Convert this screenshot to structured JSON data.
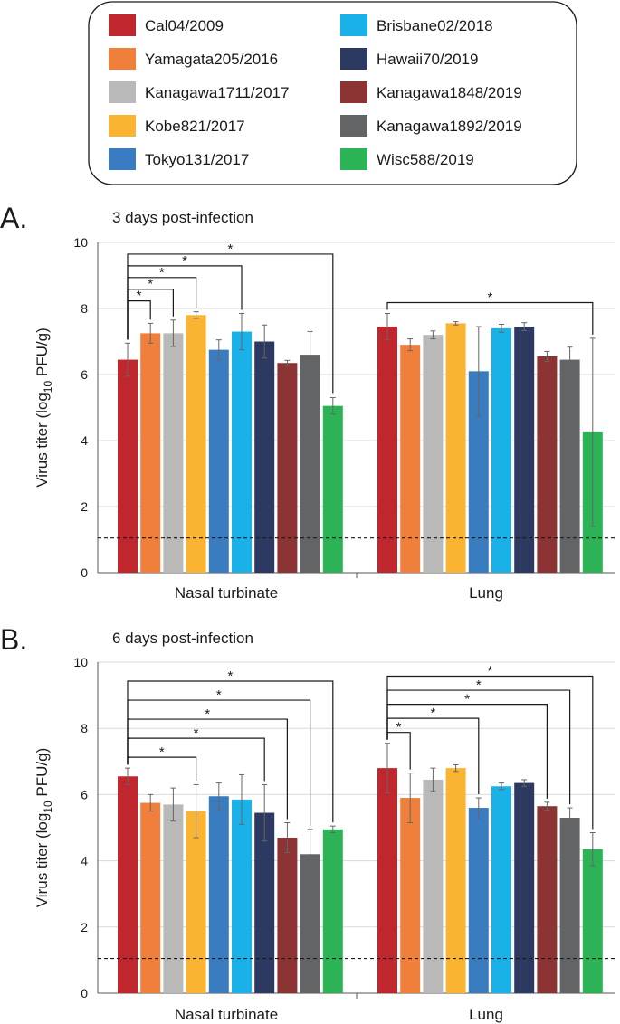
{
  "legend": {
    "items": [
      {
        "label": "Cal04/2009",
        "color": "#c0262d"
      },
      {
        "label": "Yamagata205/2016",
        "color": "#f07f3c"
      },
      {
        "label": "Kanagawa1711/2017",
        "color": "#b9b9b9"
      },
      {
        "label": "Kobe821/2017",
        "color": "#fbb432"
      },
      {
        "label": "Tokyo131/2017",
        "color": "#3a7cc0"
      },
      {
        "label": "Brisbane02/2018",
        "color": "#1ab0e8"
      },
      {
        "label": "Hawaii70/2019",
        "color": "#2c3a62"
      },
      {
        "label": "Kanagawa1848/2019",
        "color": "#8b3433"
      },
      {
        "label": "Kanagawa1892/2019",
        "color": "#636466"
      },
      {
        "label": "Wisc588/2019",
        "color": "#2bb355"
      }
    ]
  },
  "chart_data": [
    {
      "panel": "A.",
      "type": "bar",
      "title": "3 days post-infection",
      "ylabel": "Virus titer (log10 PFU/g)",
      "ylabel_main": "Virus titer (log",
      "ylabel_sub": "10",
      "ylabel_tail": " PFU/g)",
      "ylim": [
        0,
        10
      ],
      "yticks": [
        "0",
        "2",
        "4",
        "6",
        "8",
        "10"
      ],
      "detection_limit": 1.05,
      "groups": [
        "Nasal turbinate",
        "Lung"
      ],
      "series": [
        {
          "name": "Cal04/2009",
          "values": [
            6.45,
            7.45
          ],
          "errors": [
            0.5,
            0.4
          ]
        },
        {
          "name": "Yamagata205/2016",
          "values": [
            7.25,
            6.9
          ],
          "errors": [
            0.3,
            0.18
          ]
        },
        {
          "name": "Kanagawa1711/2017",
          "values": [
            7.25,
            7.2
          ],
          "errors": [
            0.4,
            0.12
          ]
        },
        {
          "name": "Kobe821/2017",
          "values": [
            7.8,
            7.55
          ],
          "errors": [
            0.1,
            0.05
          ]
        },
        {
          "name": "Tokyo131/2017",
          "values": [
            6.75,
            6.1
          ],
          "errors": [
            0.3,
            1.35
          ]
        },
        {
          "name": "Brisbane02/2018",
          "values": [
            7.3,
            7.4
          ],
          "errors": [
            0.55,
            0.12
          ]
        },
        {
          "name": "Hawaii70/2019",
          "values": [
            7.0,
            7.45
          ],
          "errors": [
            0.5,
            0.12
          ]
        },
        {
          "name": "Kanagawa1848/2019",
          "values": [
            6.35,
            6.55
          ],
          "errors": [
            0.08,
            0.15
          ]
        },
        {
          "name": "Kanagawa1892/2019",
          "values": [
            6.6,
            6.45
          ],
          "errors": [
            0.7,
            0.38
          ]
        },
        {
          "name": "Wisc588/2019",
          "values": [
            5.05,
            4.25
          ],
          "errors": [
            0.25,
            2.85
          ]
        }
      ],
      "significance": [
        {
          "group": 0,
          "from": 0,
          "to": 1,
          "label": "*"
        },
        {
          "group": 0,
          "from": 0,
          "to": 2,
          "label": "*"
        },
        {
          "group": 0,
          "from": 0,
          "to": 3,
          "label": "*"
        },
        {
          "group": 0,
          "from": 0,
          "to": 5,
          "label": "*"
        },
        {
          "group": 0,
          "from": 0,
          "to": 9,
          "label": "*"
        },
        {
          "group": 1,
          "from": 0,
          "to": 9,
          "label": "*"
        }
      ]
    },
    {
      "panel": "B.",
      "type": "bar",
      "title": "6 days post-infection",
      "ylabel": "Virus titer (log10 PFU/g)",
      "ylabel_main": "Virus titer (log",
      "ylabel_sub": "10",
      "ylabel_tail": " PFU/g)",
      "ylim": [
        0,
        10
      ],
      "yticks": [
        "0",
        "2",
        "4",
        "6",
        "8",
        "10"
      ],
      "detection_limit": 1.05,
      "groups": [
        "Nasal turbinate",
        "Lung"
      ],
      "series": [
        {
          "name": "Cal04/2009",
          "values": [
            6.55,
            6.8
          ],
          "errors": [
            0.25,
            0.75
          ]
        },
        {
          "name": "Yamagata205/2016",
          "values": [
            5.75,
            5.9
          ],
          "errors": [
            0.25,
            0.75
          ]
        },
        {
          "name": "Kanagawa1711/2017",
          "values": [
            5.7,
            6.45
          ],
          "errors": [
            0.5,
            0.35
          ]
        },
        {
          "name": "Kobe821/2017",
          "values": [
            5.5,
            6.8
          ],
          "errors": [
            0.8,
            0.1
          ]
        },
        {
          "name": "Tokyo131/2017",
          "values": [
            5.95,
            5.6
          ],
          "errors": [
            0.4,
            0.3
          ]
        },
        {
          "name": "Brisbane02/2018",
          "values": [
            5.85,
            6.25
          ],
          "errors": [
            0.75,
            0.1
          ]
        },
        {
          "name": "Hawaii70/2019",
          "values": [
            5.45,
            6.35
          ],
          "errors": [
            0.85,
            0.1
          ]
        },
        {
          "name": "Kanagawa1848/2019",
          "values": [
            4.7,
            5.65
          ],
          "errors": [
            0.45,
            0.12
          ]
        },
        {
          "name": "Kanagawa1892/2019",
          "values": [
            4.2,
            5.3
          ],
          "errors": [
            0.75,
            0.3
          ]
        },
        {
          "name": "Wisc588/2019",
          "values": [
            4.95,
            4.35
          ],
          "errors": [
            0.1,
            0.5
          ]
        }
      ],
      "significance": [
        {
          "group": 0,
          "from": 0,
          "to": 3,
          "label": "*"
        },
        {
          "group": 0,
          "from": 0,
          "to": 6,
          "label": "*"
        },
        {
          "group": 0,
          "from": 0,
          "to": 7,
          "label": "*"
        },
        {
          "group": 0,
          "from": 0,
          "to": 8,
          "label": "*"
        },
        {
          "group": 0,
          "from": 0,
          "to": 9,
          "label": "*"
        },
        {
          "group": 1,
          "from": 0,
          "to": 1,
          "label": "*"
        },
        {
          "group": 1,
          "from": 0,
          "to": 4,
          "label": "*"
        },
        {
          "group": 1,
          "from": 0,
          "to": 7,
          "label": "*"
        },
        {
          "group": 1,
          "from": 0,
          "to": 8,
          "label": "*"
        },
        {
          "group": 1,
          "from": 0,
          "to": 9,
          "label": "*"
        }
      ]
    }
  ]
}
